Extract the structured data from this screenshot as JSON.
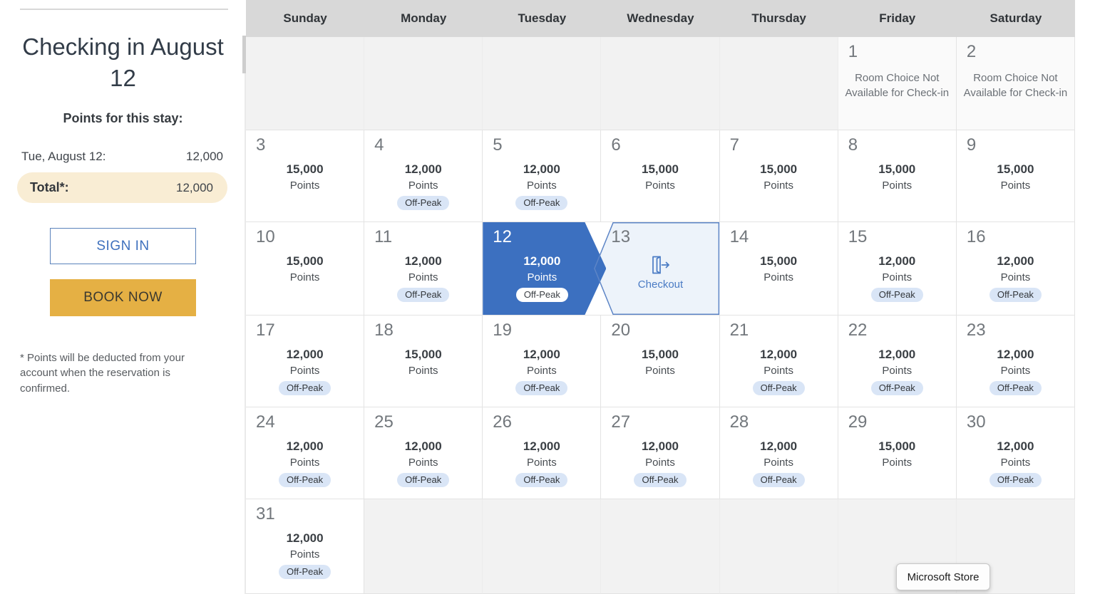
{
  "sidebar": {
    "title": "Checking in August 12",
    "points_header": "Points for this stay:",
    "stay_rows": [
      {
        "label": "Tue, August 12:",
        "value": "12,000"
      }
    ],
    "total_label": "Total*:",
    "total_value": "12,000",
    "sign_in_label": "SIGN IN",
    "book_now_label": "BOOK NOW",
    "footnote": "* Points will be deducted from your account when the reservation is confirmed."
  },
  "calendar": {
    "weekdays": [
      "Sunday",
      "Monday",
      "Tuesday",
      "Wednesday",
      "Thursday",
      "Friday",
      "Saturday"
    ],
    "unavailable_note": "Room Choice Not Available for Check-in",
    "points_label": "Points",
    "badge_label": "Off-Peak",
    "checkout_label": "Checkout",
    "icons": {
      "checkout": "door-with-right-arrow"
    },
    "weeks": [
      [
        {
          "type": "empty"
        },
        {
          "type": "empty"
        },
        {
          "type": "empty"
        },
        {
          "type": "empty"
        },
        {
          "type": "empty"
        },
        {
          "type": "unavailable",
          "day": "1"
        },
        {
          "type": "unavailable",
          "day": "2"
        }
      ],
      [
        {
          "day": "3",
          "points": "15,000"
        },
        {
          "day": "4",
          "points": "12,000",
          "off_peak": true
        },
        {
          "day": "5",
          "points": "12,000",
          "off_peak": true
        },
        {
          "day": "6",
          "points": "15,000"
        },
        {
          "day": "7",
          "points": "15,000"
        },
        {
          "day": "8",
          "points": "15,000"
        },
        {
          "day": "9",
          "points": "15,000"
        }
      ],
      [
        {
          "day": "10",
          "points": "15,000"
        },
        {
          "day": "11",
          "points": "12,000",
          "off_peak": true
        },
        {
          "type": "checkin",
          "day": "12",
          "points": "12,000",
          "off_peak": true
        },
        {
          "type": "checkout",
          "day": "13"
        },
        {
          "day": "14",
          "points": "15,000"
        },
        {
          "day": "15",
          "points": "12,000",
          "off_peak": true
        },
        {
          "day": "16",
          "points": "12,000",
          "off_peak": true
        }
      ],
      [
        {
          "day": "17",
          "points": "12,000",
          "off_peak": true
        },
        {
          "day": "18",
          "points": "15,000"
        },
        {
          "day": "19",
          "points": "12,000",
          "off_peak": true
        },
        {
          "day": "20",
          "points": "15,000"
        },
        {
          "day": "21",
          "points": "12,000",
          "off_peak": true
        },
        {
          "day": "22",
          "points": "12,000",
          "off_peak": true
        },
        {
          "day": "23",
          "points": "12,000",
          "off_peak": true
        }
      ],
      [
        {
          "day": "24",
          "points": "12,000",
          "off_peak": true
        },
        {
          "day": "25",
          "points": "12,000",
          "off_peak": true
        },
        {
          "day": "26",
          "points": "12,000",
          "off_peak": true
        },
        {
          "day": "27",
          "points": "12,000",
          "off_peak": true
        },
        {
          "day": "28",
          "points": "12,000",
          "off_peak": true
        },
        {
          "day": "29",
          "points": "15,000"
        },
        {
          "day": "30",
          "points": "12,000",
          "off_peak": true
        }
      ],
      [
        {
          "day": "31",
          "points": "12,000",
          "off_peak": true
        },
        {
          "type": "empty"
        },
        {
          "type": "empty"
        },
        {
          "type": "empty"
        },
        {
          "type": "empty"
        },
        {
          "type": "empty"
        },
        {
          "type": "empty"
        }
      ]
    ]
  },
  "tooltip": {
    "label": "Microsoft Store"
  },
  "colors": {
    "selected_blue": "#3c70c0",
    "checkout_border": "#5d85c6",
    "off_peak_pill": "#d9e5f6",
    "accent_gold": "#e5b044",
    "total_cream": "#f9edd4"
  }
}
